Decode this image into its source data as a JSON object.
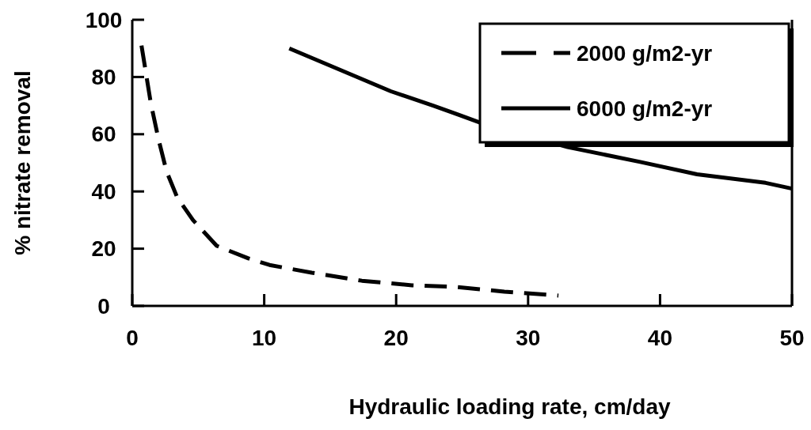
{
  "chart_data": {
    "type": "line",
    "xlabel": "Hydraulic loading rate, cm/day",
    "ylabel": "% nitrate removal",
    "xlim": [
      0,
      50
    ],
    "xticks": [
      0,
      10,
      20,
      30,
      40,
      50
    ],
    "ylim": [
      0,
      100
    ],
    "yticks": [
      0,
      20,
      40,
      60,
      80,
      100
    ],
    "legend": "top right",
    "grid": false,
    "series": [
      {
        "name": "2000 g/m2-yr",
        "color": "#000000",
        "line_style": "dashed",
        "x": [
          0.7,
          1.4,
          2,
          2.6,
          3.4,
          4.6,
          5.6,
          6.4,
          8.8,
          10.4,
          13.6,
          17.4,
          21.2,
          24.6,
          28.2,
          32.3
        ],
        "values": [
          91,
          71,
          58,
          47,
          38,
          30,
          25,
          21,
          16.6,
          14.3,
          11.6,
          8.8,
          7.2,
          6.6,
          5,
          3.6
        ]
      },
      {
        "name": "6000 g/m2-yr",
        "color": "#000000",
        "line_style": "solid",
        "x": [
          11.9,
          19.6,
          22.8,
          24.6,
          26.4,
          33,
          38.5,
          42.8,
          48,
          50
        ],
        "values": [
          90,
          75,
          70,
          67,
          64,
          55.5,
          50.3,
          46,
          43,
          41
        ]
      }
    ]
  }
}
